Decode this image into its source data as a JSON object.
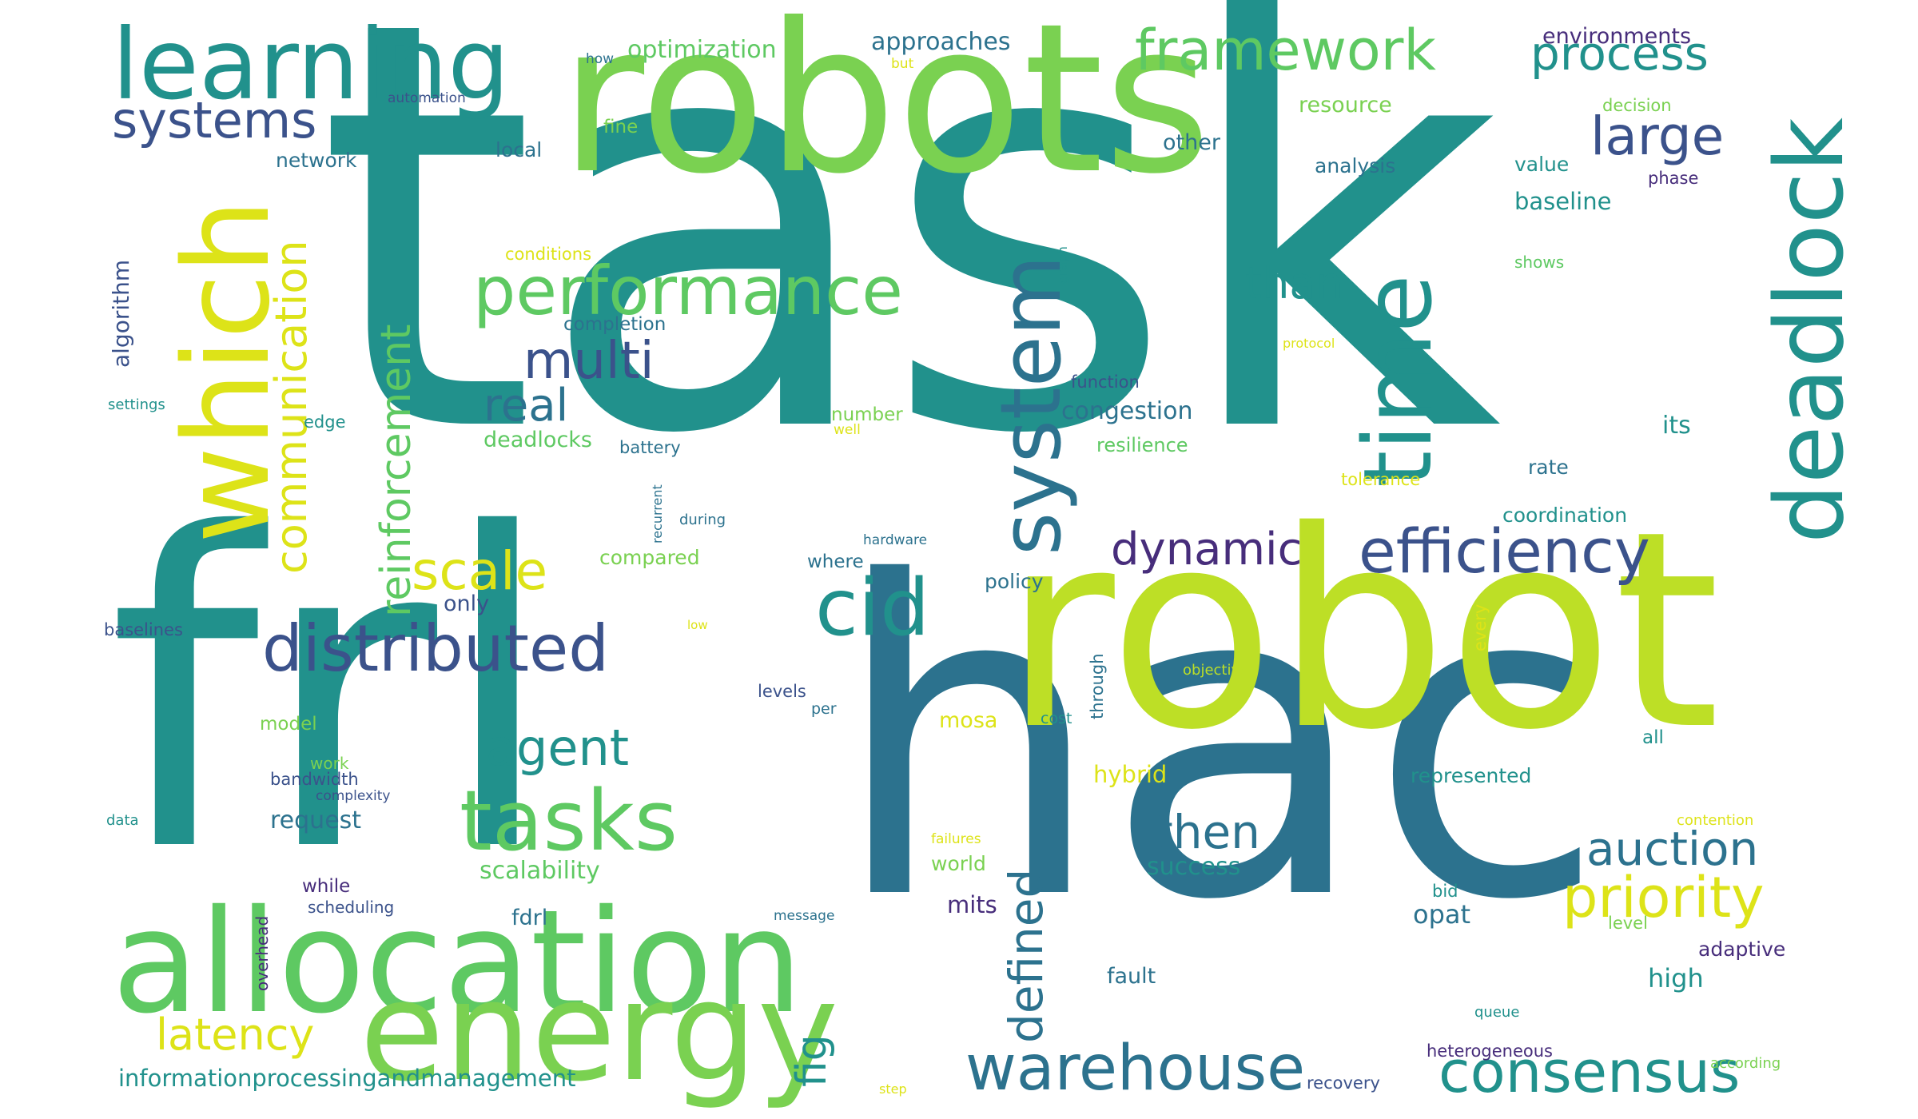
{
  "colors": {
    "teal": "#21918c",
    "blue": "#2c728e",
    "lightgreen": "#7ad151",
    "yellowgreen": "#bddf26",
    "green": "#5ec962",
    "navy": "#3b528b",
    "purple": "#472d7b",
    "yellow": "#dde318"
  },
  "words": {
    "task": "task",
    "frl": "frl",
    "hac": "hac",
    "robot": "robot",
    "robots": "robots",
    "allocation": "allocation",
    "energy": "energy",
    "learning": "learning",
    "which": "which",
    "deadlock": "deadlock",
    "system": "system",
    "time": "time",
    "performance": "performance",
    "tasks": "tasks",
    "distributed": "distributed",
    "framework": "framework",
    "efficiency": "efficiency",
    "cid": "cid",
    "warehouse": "warehouse",
    "consensus": "consensus",
    "priority": "priority",
    "auction": "auction",
    "multi": "multi",
    "systems": "systems",
    "communication": "communication",
    "reinforcement": "reinforcement",
    "scale": "scale",
    "agent": "agent",
    "real": "real",
    "process": "process",
    "large": "large",
    "dynamic": "dynamic",
    "then": "then",
    "defined": "defined",
    "fig": "fig",
    "latency": "latency",
    "than": "than",
    "information": "informationprocessingandmanagement",
    "optimization": "optimization",
    "approaches": "approaches",
    "environments": "environments",
    "algorithm": "algorithm",
    "network": "network",
    "scalability": "scalability",
    "congestion": "congestion",
    "deadlocks": "deadlocks",
    "completion": "completion",
    "mosa": "mosa",
    "hybrid": "hybrid",
    "request": "request",
    "success": "success",
    "mits": "mits",
    "opat": "opat",
    "high": "high",
    "resource": "resource",
    "analysis": "analysis",
    "baseline": "baseline",
    "value": "value",
    "resilience": "resilience",
    "its": "its",
    "rate": "rate",
    "coordination": "coordination",
    "represented": "represented",
    "adaptive": "adaptive",
    "other": "other",
    "local": "local",
    "fine": "fine",
    "battery": "battery",
    "compared": "compared",
    "where": "where",
    "policy": "policy",
    "only": "only",
    "fdrl": "fdrl",
    "world": "world",
    "fault": "fault",
    "bandwidth": "bandwidth",
    "model": "model",
    "levels": "levels",
    "baselines": "baselines",
    "edge": "edge",
    "settings": "settings",
    "function": "function",
    "number": "number",
    "well": "well",
    "tolerance": "tolerance",
    "phase": "phase",
    "decision": "decision",
    "shows": "shows",
    "while": "while",
    "scheduling": "scheduling",
    "work": "work",
    "complexity": "complexity",
    "data": "data",
    "overhead": "overhead",
    "message": "message",
    "failures": "failures",
    "bid": "bid",
    "level": "level",
    "queue": "queue",
    "heterogeneous": "heterogeneous",
    "recovery": "recovery",
    "according": "according",
    "contention": "contention",
    "all": "all",
    "every": "every",
    "through": "through",
    "cost": "cost",
    "per": "per",
    "objective": "objective",
    "low": "low",
    "hardware": "hardware",
    "during": "during",
    "recurrent": "recurrent",
    "protocol": "protocol",
    "graph": "graph",
    "conditions": "conditions",
    "automation": "automation",
    "how": "how",
    "but": "but",
    "step": "step"
  }
}
